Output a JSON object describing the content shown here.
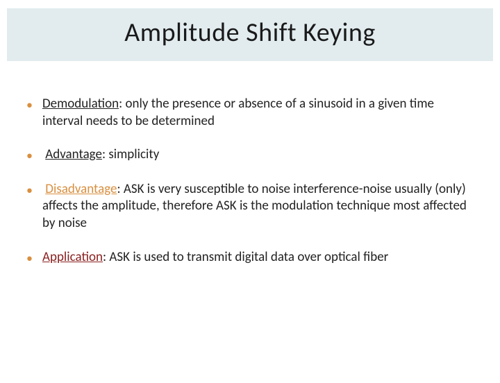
{
  "title": "Amplitude Shift Keying",
  "colors": {
    "title_bg": "#e2ecef",
    "bullet": "#d98f3f",
    "orange_label": "#d98f3f",
    "darkred_label": "#8a2020",
    "text": "#222222"
  },
  "bullets": [
    {
      "label": "Demodulation",
      "label_class": "underline",
      "text": ": only the presence or absence of a sinusoid in a given time interval needs to be determined"
    },
    {
      "label": "Advantage",
      "label_class": "underline",
      "text": ": simplicity"
    },
    {
      "label": "Disadvantage",
      "label_class": "orange underline",
      "text": ": ASK is very susceptible to noise interference-noise usually (only) affects the amplitude, therefore ASK is the modulation technique most affected by noise"
    },
    {
      "label": "Application",
      "label_class": "darkred underline",
      "text": ": ASK is used to transmit digital data over optical fiber"
    }
  ]
}
